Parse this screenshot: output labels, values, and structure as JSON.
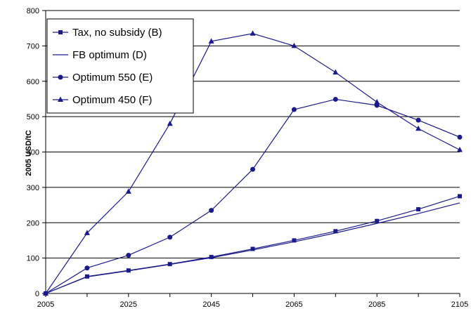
{
  "chart_data": {
    "type": "line",
    "ylabel": "2005 USD/tC",
    "xlabel": "",
    "title": "",
    "ylim": [
      0,
      800
    ],
    "xlim": [
      2005,
      2105
    ],
    "y_ticks": [
      "0",
      "100",
      "200",
      "300",
      "400",
      "500",
      "600",
      "700",
      "800"
    ],
    "x_ticks": [
      "2005",
      "2025",
      "2045",
      "2065",
      "2085",
      "2105"
    ],
    "grid": "horizontal",
    "legend_position": "top-left",
    "line_color": "#1a1a8c",
    "x": [
      2005,
      2015,
      2025,
      2035,
      2045,
      2055,
      2065,
      2075,
      2085,
      2095,
      2105
    ],
    "series": [
      {
        "name": "Tax, no subsidy (B)",
        "marker": "square",
        "values": [
          0,
          48,
          65,
          83,
          103,
          126,
          150,
          176,
          205,
          238,
          275
        ]
      },
      {
        "name": "FB optimum (D)",
        "marker": "none",
        "values": [
          0,
          47,
          64,
          82,
          101,
          123,
          146,
          171,
          198,
          226,
          256
        ]
      },
      {
        "name": "Optimum 550 (E)",
        "marker": "circle",
        "values": [
          0,
          72,
          108,
          159,
          235,
          351,
          520,
          549,
          532,
          490,
          442
        ]
      },
      {
        "name": "Optimum 450 (F)",
        "marker": "triangle",
        "values": [
          0,
          171,
          288,
          480,
          713,
          735,
          700,
          625,
          541,
          466,
          406
        ]
      }
    ]
  }
}
